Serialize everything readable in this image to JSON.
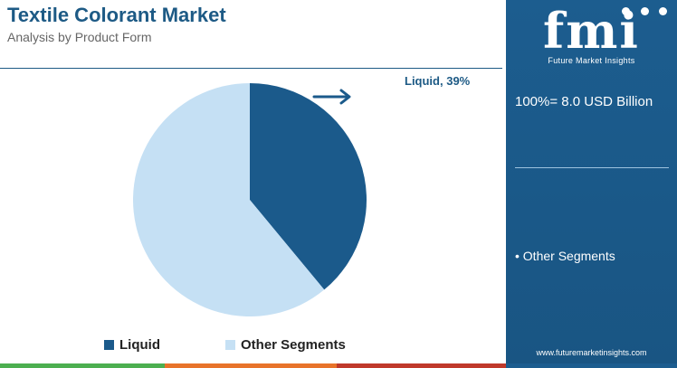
{
  "header": {
    "title": "Textile Colorant Market",
    "subtitle": "Analysis by Product Form"
  },
  "chart_data": {
    "type": "pie",
    "title": "Textile Colorant Market",
    "subtitle": "Analysis by Product Form",
    "slices": [
      {
        "name": "Liquid",
        "value": 39,
        "color": "#1b5a8b"
      },
      {
        "name": "Other Segments",
        "value": 61,
        "color": "#c5e0f4"
      }
    ],
    "data_labels": [
      {
        "slice": "Liquid",
        "text": "Liquid, 39%"
      }
    ],
    "legend": {
      "placement": "bottom",
      "entries": [
        "Liquid",
        "Other Segments"
      ]
    },
    "annotations": [
      {
        "type": "arrow",
        "points_to": "Liquid, 39%"
      }
    ]
  },
  "side_panel": {
    "logo_text": "fmi",
    "logo_tagline": "Future Market Insights",
    "total_value": "100%= 8.0 USD Billion",
    "items": [
      "• Other Segments"
    ],
    "website": "www.futuremarketinsights.com",
    "background_color": "#1c5d8f"
  },
  "bottom_bar": {
    "colors": [
      "#4caf50",
      "#e8732a",
      "#c0392b",
      "#1c5d8f"
    ]
  }
}
